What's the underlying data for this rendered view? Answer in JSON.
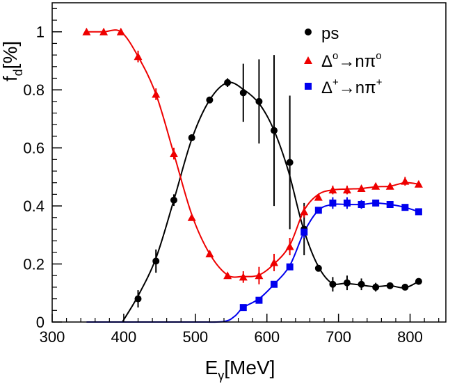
{
  "chart_data": {
    "type": "line",
    "title": "",
    "xlabel": {
      "main": "E",
      "sub": "γ",
      "rest": "[MeV]"
    },
    "ylabel": {
      "main": "f",
      "sub": "d",
      "rest": "[%]"
    },
    "xlim": [
      300,
      850
    ],
    "ylim": [
      0,
      1.1
    ],
    "xticks": [
      300,
      400,
      500,
      600,
      700,
      800
    ],
    "yticks": [
      0,
      0.2,
      0.4,
      0.6,
      0.8,
      1
    ],
    "xtick_labels": [
      "300",
      "400",
      "500",
      "600",
      "700",
      "800"
    ],
    "ytick_labels": [
      "0",
      "0.2",
      "0.4",
      "0.6",
      "0.8",
      "1"
    ],
    "legend_position": "top-right",
    "series": [
      {
        "key": "ps",
        "name_parts": {
          "a": "ps"
        },
        "color": "#000000",
        "marker": "circle",
        "points": [
          {
            "x": 420,
            "y": 0.08,
            "err": 0.03
          },
          {
            "x": 445,
            "y": 0.21,
            "err": 0.04
          },
          {
            "x": 470,
            "y": 0.42,
            "err": 0.02
          },
          {
            "x": 495,
            "y": 0.635,
            "err": 0.01
          },
          {
            "x": 520,
            "y": 0.765,
            "err": 0.01
          },
          {
            "x": 545,
            "y": 0.825,
            "err": 0.015
          },
          {
            "x": 567,
            "y": 0.79,
            "err": 0.1
          },
          {
            "x": 589,
            "y": 0.76,
            "err": 0.145
          },
          {
            "x": 610,
            "y": 0.66,
            "err": 0.26
          },
          {
            "x": 632,
            "y": 0.55,
            "err": 0.23
          },
          {
            "x": 652,
            "y": 0.32,
            "err": 0.09
          },
          {
            "x": 672,
            "y": 0.185,
            "err": 0.01
          },
          {
            "x": 692,
            "y": 0.13,
            "err": 0.025
          },
          {
            "x": 712,
            "y": 0.135,
            "err": 0.025
          },
          {
            "x": 732,
            "y": 0.13,
            "err": 0.02
          },
          {
            "x": 752,
            "y": 0.12,
            "err": 0.015
          },
          {
            "x": 772,
            "y": 0.125,
            "err": 0.01
          },
          {
            "x": 793,
            "y": 0.12,
            "err": 0.01
          },
          {
            "x": 812,
            "y": 0.14,
            "err": 0.01
          }
        ],
        "curve": [
          [
            398,
            0
          ],
          [
            420,
            0.09
          ],
          [
            445,
            0.22
          ],
          [
            470,
            0.42
          ],
          [
            495,
            0.63
          ],
          [
            520,
            0.765
          ],
          [
            545,
            0.825
          ],
          [
            568,
            0.8
          ],
          [
            590,
            0.75
          ],
          [
            610,
            0.66
          ],
          [
            630,
            0.52
          ],
          [
            650,
            0.33
          ],
          [
            670,
            0.2
          ],
          [
            690,
            0.135
          ],
          [
            710,
            0.133
          ],
          [
            730,
            0.128
          ],
          [
            750,
            0.122
          ],
          [
            772,
            0.125
          ],
          [
            793,
            0.118
          ],
          [
            812,
            0.14
          ]
        ]
      },
      {
        "key": "delta0",
        "name_parts": {
          "a": "Δ",
          "sup1": "o",
          "b": "→nπ",
          "sup2": "o"
        },
        "color": "#ee0000",
        "marker": "triangle",
        "points": [
          {
            "x": 348,
            "y": 1.0,
            "err": 0
          },
          {
            "x": 372,
            "y": 1.0,
            "err": 0
          },
          {
            "x": 396,
            "y": 1.0,
            "err": 0
          },
          {
            "x": 420,
            "y": 0.915,
            "err": 0.02
          },
          {
            "x": 445,
            "y": 0.785,
            "err": 0.02
          },
          {
            "x": 470,
            "y": 0.58,
            "err": 0.02
          },
          {
            "x": 495,
            "y": 0.36,
            "err": 0.01
          },
          {
            "x": 520,
            "y": 0.235,
            "err": 0.01
          },
          {
            "x": 545,
            "y": 0.16,
            "err": 0.01
          },
          {
            "x": 567,
            "y": 0.155,
            "err": 0.02
          },
          {
            "x": 589,
            "y": 0.16,
            "err": 0.03
          },
          {
            "x": 610,
            "y": 0.205,
            "err": 0.03
          },
          {
            "x": 632,
            "y": 0.26,
            "err": 0.03
          },
          {
            "x": 652,
            "y": 0.38,
            "err": 0.02
          },
          {
            "x": 672,
            "y": 0.43,
            "err": 0.01
          },
          {
            "x": 692,
            "y": 0.455,
            "err": 0.015
          },
          {
            "x": 712,
            "y": 0.455,
            "err": 0.015
          },
          {
            "x": 732,
            "y": 0.46,
            "err": 0.01
          },
          {
            "x": 752,
            "y": 0.468,
            "err": 0.01
          },
          {
            "x": 772,
            "y": 0.468,
            "err": 0.01
          },
          {
            "x": 793,
            "y": 0.485,
            "err": 0.015
          },
          {
            "x": 812,
            "y": 0.475,
            "err": 0.01
          }
        ],
        "curve": [
          [
            348,
            1.0
          ],
          [
            372,
            1.0
          ],
          [
            396,
            1.0
          ],
          [
            420,
            0.915
          ],
          [
            445,
            0.785
          ],
          [
            470,
            0.58
          ],
          [
            495,
            0.37
          ],
          [
            520,
            0.235
          ],
          [
            545,
            0.162
          ],
          [
            567,
            0.157
          ],
          [
            589,
            0.162
          ],
          [
            610,
            0.2
          ],
          [
            632,
            0.265
          ],
          [
            652,
            0.385
          ],
          [
            672,
            0.44
          ],
          [
            692,
            0.455
          ],
          [
            712,
            0.458
          ],
          [
            732,
            0.46
          ],
          [
            752,
            0.466
          ],
          [
            772,
            0.468
          ],
          [
            793,
            0.48
          ],
          [
            812,
            0.475
          ]
        ]
      },
      {
        "key": "deltaP",
        "name_parts": {
          "a": "Δ",
          "sup1": "+",
          "b": "→nπ",
          "sup2": "+"
        },
        "color": "#0000ee",
        "marker": "square",
        "points": [
          {
            "x": 567,
            "y": 0.05,
            "err": 0.01
          },
          {
            "x": 589,
            "y": 0.075,
            "err": 0.01
          },
          {
            "x": 610,
            "y": 0.13,
            "err": 0.01
          },
          {
            "x": 632,
            "y": 0.19,
            "err": 0.01
          },
          {
            "x": 652,
            "y": 0.31,
            "err": 0.02
          },
          {
            "x": 672,
            "y": 0.385,
            "err": 0.01
          },
          {
            "x": 692,
            "y": 0.41,
            "err": 0.02
          },
          {
            "x": 712,
            "y": 0.41,
            "err": 0.02
          },
          {
            "x": 732,
            "y": 0.405,
            "err": 0.015
          },
          {
            "x": 752,
            "y": 0.41,
            "err": 0.01
          },
          {
            "x": 772,
            "y": 0.405,
            "err": 0.01
          },
          {
            "x": 793,
            "y": 0.395,
            "err": 0.01
          },
          {
            "x": 812,
            "y": 0.38,
            "err": 0.01
          }
        ],
        "curve": [
          [
            348,
            0
          ],
          [
            400,
            0
          ],
          [
            500,
            0
          ],
          [
            540,
            0.002
          ],
          [
            555,
            0.02
          ],
          [
            567,
            0.05
          ],
          [
            589,
            0.08
          ],
          [
            610,
            0.13
          ],
          [
            632,
            0.195
          ],
          [
            652,
            0.31
          ],
          [
            672,
            0.385
          ],
          [
            692,
            0.405
          ],
          [
            712,
            0.405
          ],
          [
            732,
            0.405
          ],
          [
            752,
            0.41
          ],
          [
            772,
            0.405
          ],
          [
            793,
            0.395
          ],
          [
            812,
            0.38
          ]
        ]
      }
    ]
  }
}
